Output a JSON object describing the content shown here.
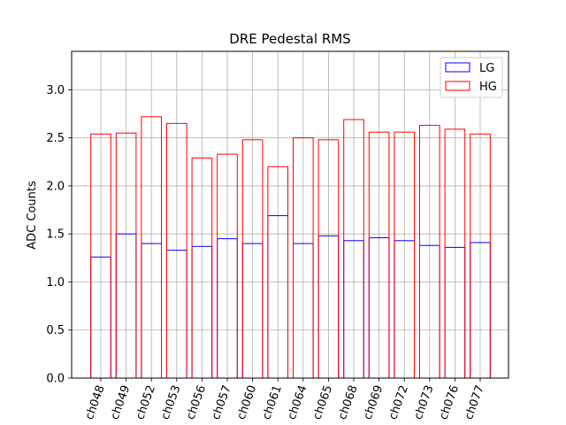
{
  "chart_data": {
    "type": "bar",
    "title": "DRE Pedestal RMS",
    "xlabel": "",
    "ylabel": "ADC Counts",
    "ylim": [
      0,
      3.4
    ],
    "yticks": [
      "0.0",
      "0.5",
      "1.0",
      "1.5",
      "2.0",
      "2.5",
      "3.0"
    ],
    "grid": true,
    "legend_position": "top-right",
    "categories": [
      "ch048",
      "ch049",
      "ch052",
      "ch053",
      "ch056",
      "ch057",
      "ch060",
      "ch061",
      "ch064",
      "ch065",
      "ch068",
      "ch069",
      "ch072",
      "ch073",
      "ch076",
      "ch077"
    ],
    "series": [
      {
        "name": "LG",
        "color": "#0000ff",
        "fill": "none",
        "values": [
          1.26,
          1.5,
          1.4,
          1.33,
          1.37,
          1.45,
          1.4,
          1.69,
          1.4,
          1.48,
          1.43,
          1.46,
          1.43,
          1.38,
          1.36,
          1.41
        ]
      },
      {
        "name": "HG",
        "color": "#ff0000",
        "fill": "none",
        "values": [
          2.54,
          2.55,
          2.72,
          2.65,
          2.29,
          2.33,
          2.48,
          2.2,
          2.5,
          2.48,
          2.69,
          2.56,
          2.56,
          2.63,
          2.59,
          2.54
        ]
      }
    ]
  }
}
